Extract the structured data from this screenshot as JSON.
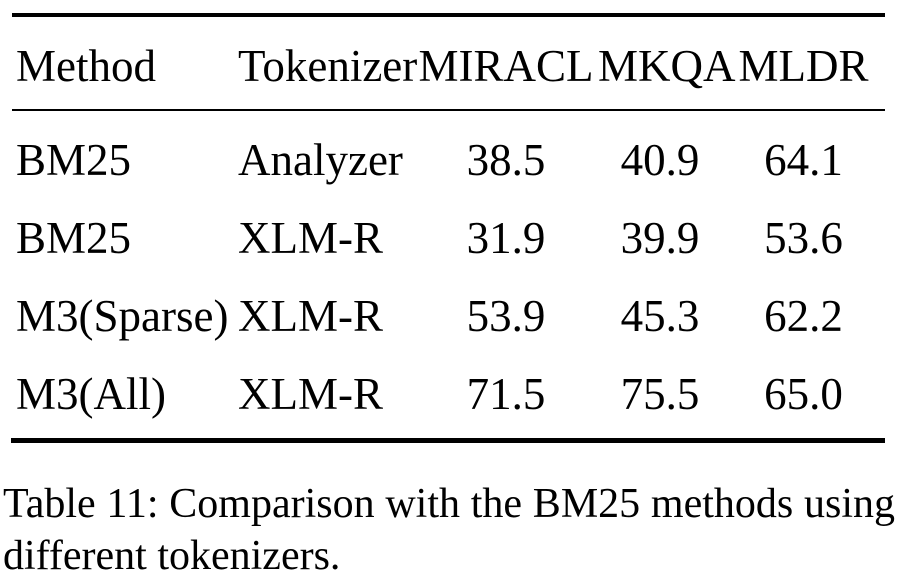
{
  "table": {
    "columns": [
      {
        "label": "Method",
        "align": "left"
      },
      {
        "label": "Tokenizer",
        "align": "left"
      },
      {
        "label": "MIRACL",
        "align": "center"
      },
      {
        "label": "MKQA",
        "align": "center"
      },
      {
        "label": "MLDR",
        "align": "center"
      }
    ],
    "rows": [
      {
        "method": "BM25",
        "tokenizer": "Analyzer",
        "miracl": "38.5",
        "mkqa": "40.9",
        "mldr": "64.1"
      },
      {
        "method": "BM25",
        "tokenizer": "XLM-R",
        "miracl": "31.9",
        "mkqa": "39.9",
        "mldr": "53.6"
      },
      {
        "method": "M3(Sparse)",
        "tokenizer": "XLM-R",
        "miracl": "53.9",
        "mkqa": "45.3",
        "mldr": "62.2"
      },
      {
        "method": "M3(All)",
        "tokenizer": "XLM-R",
        "miracl": "71.5",
        "mkqa": "75.5",
        "mldr": "65.0"
      }
    ]
  },
  "caption": {
    "line1": "Table 11: Comparison with the BM25 methods using",
    "line2": "different tokenizers."
  },
  "colors": {
    "text": "#000000",
    "background": "#ffffff",
    "rule": "#000000"
  }
}
